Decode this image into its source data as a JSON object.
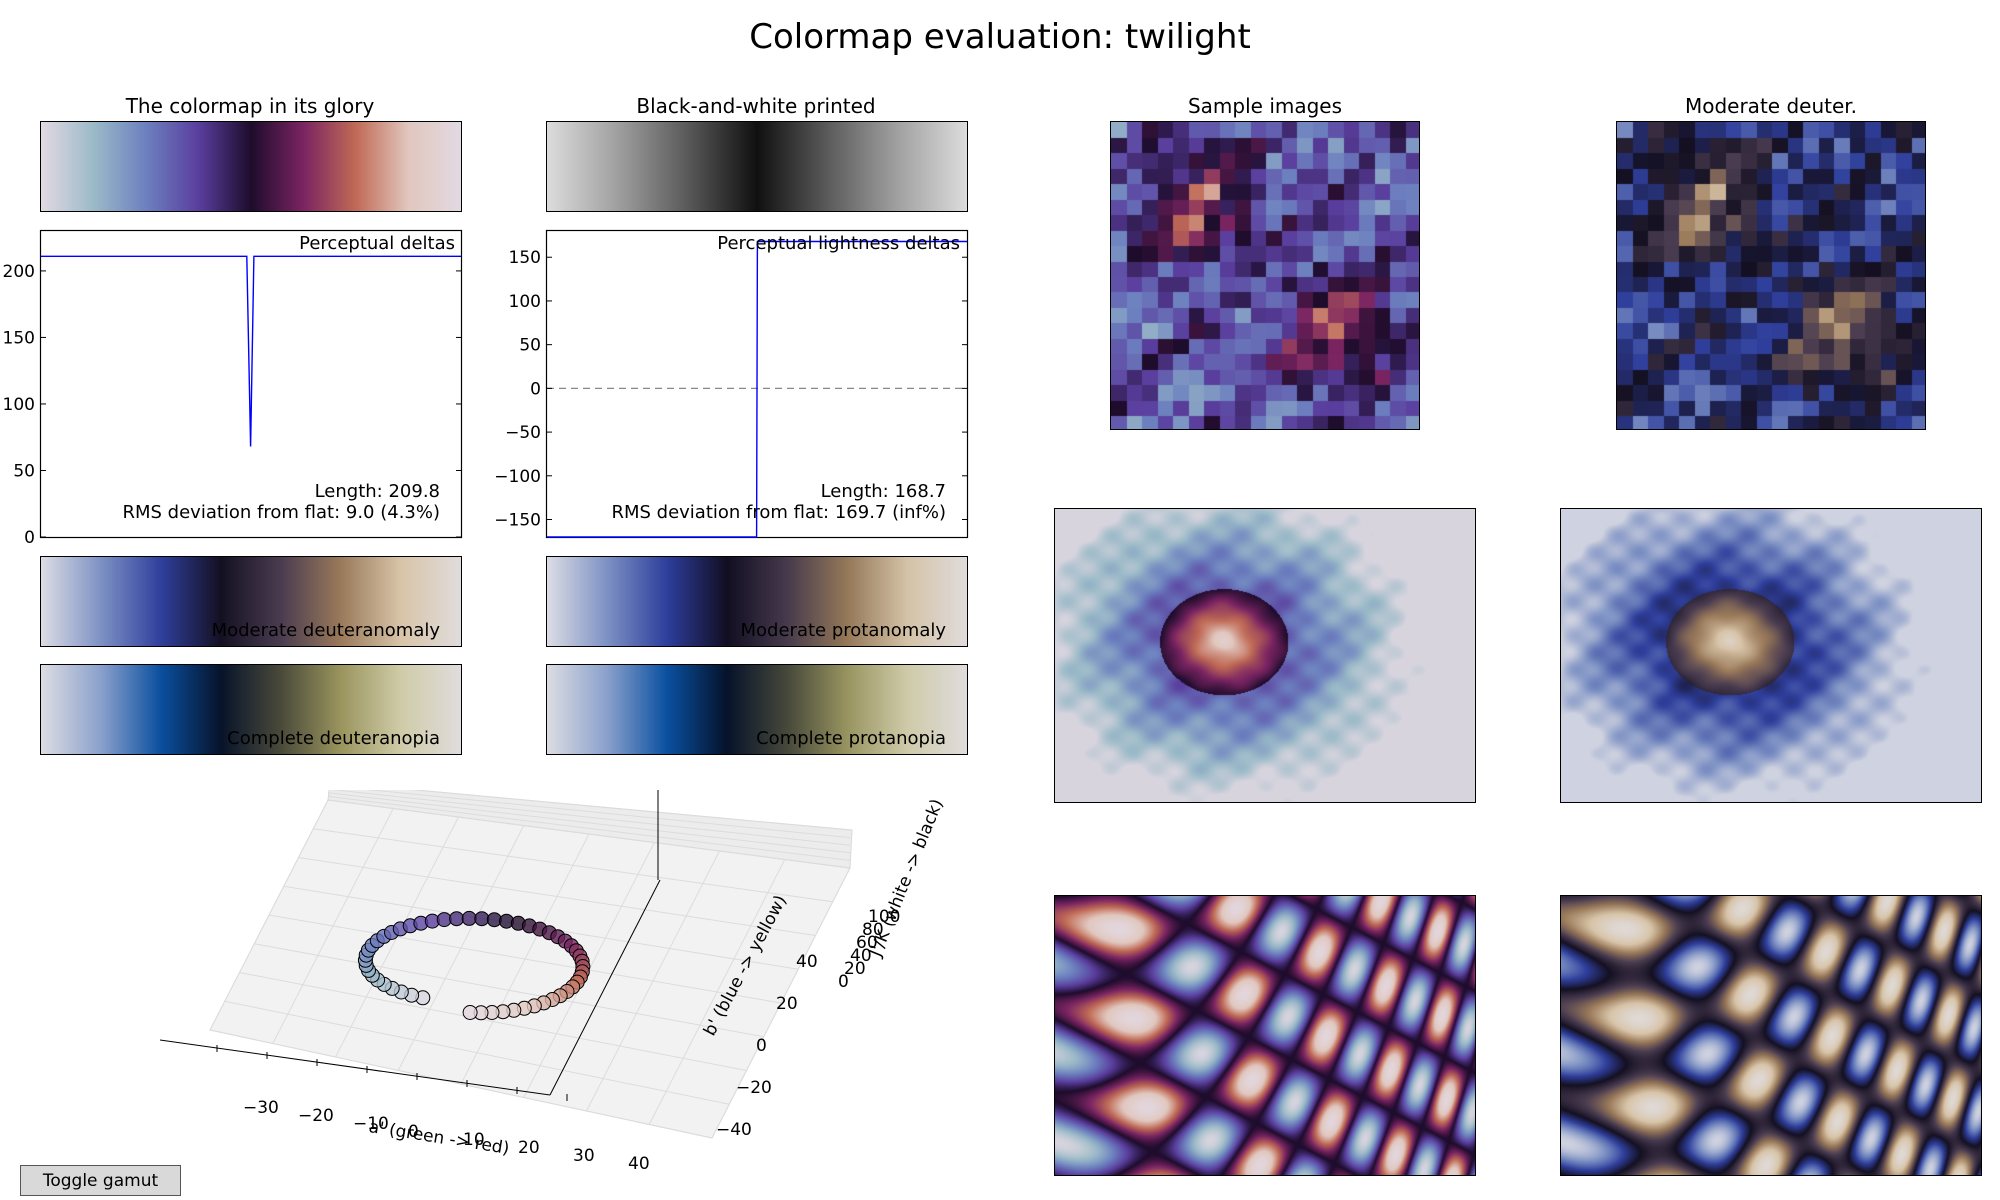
{
  "figure": {
    "title": "Colormap evaluation: twilight",
    "toggle_label": "Toggle gamut"
  },
  "colors": {
    "twilight": [
      "#e2d9e2",
      "#9bbac8",
      "#6c80bf",
      "#5a3e9e",
      "#1e0c2c",
      "#7a2462",
      "#c06a56",
      "#e1c7be",
      "#e2d9e2"
    ],
    "bw": [
      "#dcdcdc",
      "#a0a0a0",
      "#5a5a5a",
      "#101010",
      "#5a5a5a",
      "#a0a0a0",
      "#dcdcdc"
    ],
    "deuteranomaly": [
      "#dcdde4",
      "#7d91c4",
      "#2f3f9c",
      "#141022",
      "#4a3c50",
      "#9a7a5a",
      "#d8c4a8",
      "#e0dcdc"
    ],
    "protanomaly": [
      "#dcdde4",
      "#7d91c4",
      "#2d3e9c",
      "#120e22",
      "#463a4c",
      "#947858",
      "#d4c2a6",
      "#e0dcdc"
    ],
    "deuteranopia": [
      "#dcdde2",
      "#8aa0cc",
      "#0a4f9f",
      "#07132a",
      "#4a4a3a",
      "#9a955e",
      "#cfcba8",
      "#e0dcdc"
    ],
    "protanopia": [
      "#dcdde2",
      "#8aa0cc",
      "#0a50a0",
      "#05122a",
      "#46483a",
      "#989460",
      "#cecaa8",
      "#e0dcdc"
    ],
    "line": "#0000ff"
  },
  "labels": {
    "glory_title": "The colormap in its glory",
    "bw_title": "Black-and-white printed",
    "sample_title": "Sample images",
    "deuter_title": "Moderate deuter.",
    "perceptual_deltas": "Perceptual deltas",
    "lightness_deltas": "Perceptual lightness deltas",
    "deltas_length": "Length: 209.8",
    "deltas_rms": "RMS deviation from flat: 9.0 (4.3%)",
    "lightness_length": "Length: 168.7",
    "lightness_rms": "RMS deviation from flat: 169.7 (inf%)",
    "moderate_deuteranomaly": "Moderate deuteranomaly",
    "moderate_protanomaly": "Moderate protanomaly",
    "complete_deuteranopia": "Complete deuteranopia",
    "complete_protanopia": "Complete protanopia",
    "axis_a": "a' (green -> red)",
    "axis_b": "b' (blue -> yellow)",
    "axis_j": "J'/K (white -> black)"
  },
  "chart_data": [
    {
      "type": "line",
      "title": "Perceptual deltas",
      "ylim": [
        0,
        230
      ],
      "yticks": [
        "0",
        "50",
        "100",
        "150",
        "200"
      ],
      "ytick_values": [
        0,
        50,
        100,
        150,
        200
      ],
      "x": [
        0,
        0.49,
        0.499,
        0.507,
        0.515,
        1.0
      ],
      "y": [
        211,
        211,
        68,
        211,
        211,
        211
      ]
    },
    {
      "type": "line",
      "title": "Perceptual lightness deltas",
      "ylim": [
        -170,
        180
      ],
      "yticks": [
        "150",
        "100",
        "50",
        "0",
        "−50",
        "−100",
        "−150"
      ],
      "ytick_values": [
        150,
        100,
        50,
        0,
        -50,
        -100,
        -150
      ],
      "reference_line": 0,
      "x": [
        0,
        0.499,
        0.501,
        1.0
      ],
      "y": [
        -170,
        -170,
        168,
        168
      ]
    },
    {
      "type": "scatter",
      "title": "",
      "a_ticks": [
        "−30",
        "−20",
        "−10",
        "0",
        "10",
        "20",
        "30",
        "40"
      ],
      "b_ticks": [
        "−40",
        "−20",
        "0",
        "20",
        "40"
      ],
      "j_ticks": [
        "0",
        "20",
        "40",
        "60",
        "80",
        "100"
      ],
      "n_points": 52
    }
  ]
}
